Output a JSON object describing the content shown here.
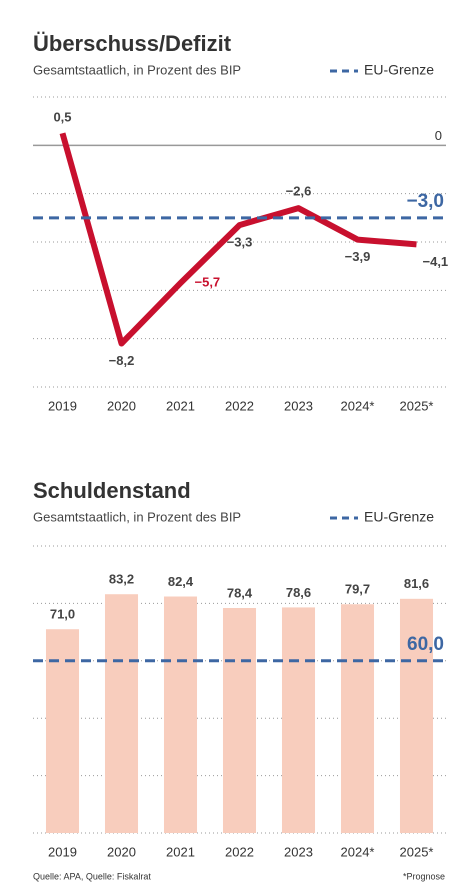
{
  "chart_data": [
    {
      "type": "line",
      "title": "Überschuss/Defizit",
      "subtitle": "Gesamtstaatlich, in Prozent des BIP",
      "categories": [
        "2019",
        "2020",
        "2021",
        "2022",
        "2023",
        "2024*",
        "2025*"
      ],
      "values": [
        0.5,
        -8.2,
        -5.7,
        -3.3,
        -2.6,
        -3.9,
        -4.1
      ],
      "value_labels": [
        "0,5",
        "−8,2",
        "−5,7",
        "−3,3",
        "−2,6",
        "−3,9",
        "−4,1"
      ],
      "color": "#c8102e",
      "ylim": [
        -10,
        2
      ],
      "yticks": [
        0
      ],
      "grid_values": [
        -10,
        -8,
        -6,
        -4,
        -2,
        2
      ],
      "reference": {
        "name": "EU-Grenze",
        "value": -3,
        "label": "−3,0",
        "color": "#3d67a3"
      }
    },
    {
      "type": "bar",
      "title": "Schuldenstand",
      "subtitle": "Gesamtstaatlich, in Prozent des BIP",
      "categories": [
        "2019",
        "2020",
        "2021",
        "2022",
        "2023",
        "2024*",
        "2025*"
      ],
      "values": [
        71.0,
        83.2,
        82.4,
        78.4,
        78.6,
        79.7,
        81.6
      ],
      "value_labels": [
        "71,0",
        "83,2",
        "82,4",
        "78,4",
        "78,6",
        "79,7",
        "81,6"
      ],
      "color": "#f8cdbd",
      "ylim": [
        0,
        100
      ],
      "grid_values": [
        0,
        20,
        40,
        60,
        80,
        100
      ],
      "reference": {
        "name": "EU-Grenze",
        "value": 60,
        "label": "60,0",
        "color": "#3d67a3"
      }
    }
  ],
  "footer": {
    "source": "Quelle: APA, Quelle: Fiskalrat",
    "note": "*Prognose"
  }
}
